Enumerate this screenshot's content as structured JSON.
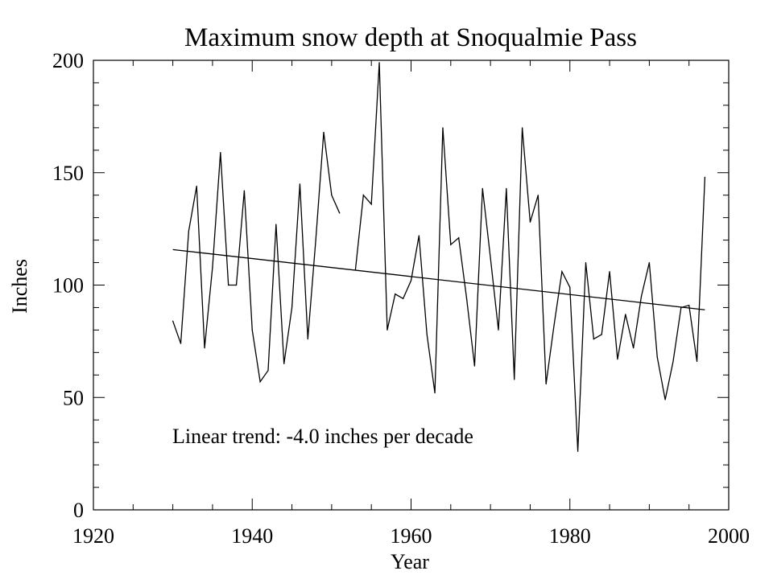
{
  "chart_data": {
    "type": "line",
    "title": "Maximum snow depth at Snoqualmie Pass",
    "xlabel": "Year",
    "ylabel": "Inches",
    "xlim": [
      1920,
      2000
    ],
    "ylim": [
      0,
      200
    ],
    "x_ticks": [
      1920,
      1940,
      1960,
      1980,
      2000
    ],
    "y_ticks": [
      0,
      50,
      100,
      150,
      200
    ],
    "grid": false,
    "annotation": "Linear trend: -4.0 inches per decade",
    "series": [
      {
        "x": [
          1930,
          1931,
          1932,
          1933,
          1934,
          1935,
          1936,
          1937,
          1938,
          1939,
          1940,
          1941,
          1942,
          1943,
          1944,
          1945,
          1946,
          1947,
          1948,
          1949,
          1950,
          1951,
          1952,
          1953,
          1954,
          1955,
          1956,
          1957,
          1958,
          1959,
          1960,
          1961,
          1962,
          1963,
          1964,
          1965,
          1966,
          1967,
          1968,
          1969,
          1970,
          1971,
          1972,
          1973,
          1974,
          1975,
          1976,
          1977,
          1978,
          1979,
          1980,
          1981,
          1982,
          1983,
          1984,
          1985,
          1986,
          1987,
          1988,
          1989,
          1990,
          1991,
          1992,
          1993,
          1994,
          1995,
          1996,
          1997
        ],
        "y": [
          84,
          74,
          124,
          144,
          72,
          108,
          159,
          100,
          100,
          142,
          80,
          57,
          62,
          127,
          65,
          90,
          145,
          76,
          120,
          168,
          140,
          132,
          null,
          107,
          140,
          136,
          199,
          80,
          96,
          94,
          102,
          122,
          78,
          52,
          170,
          118,
          121,
          94,
          64,
          143,
          112,
          80,
          143,
          58,
          170,
          128,
          140,
          56,
          82,
          106,
          99,
          26,
          110,
          76,
          78,
          106,
          67,
          87,
          72,
          95,
          110,
          68,
          49,
          66,
          90,
          91,
          66,
          148
        ]
      },
      {
        "x": [
          1930,
          1997
        ],
        "y": [
          115.8,
          89
        ]
      }
    ]
  }
}
